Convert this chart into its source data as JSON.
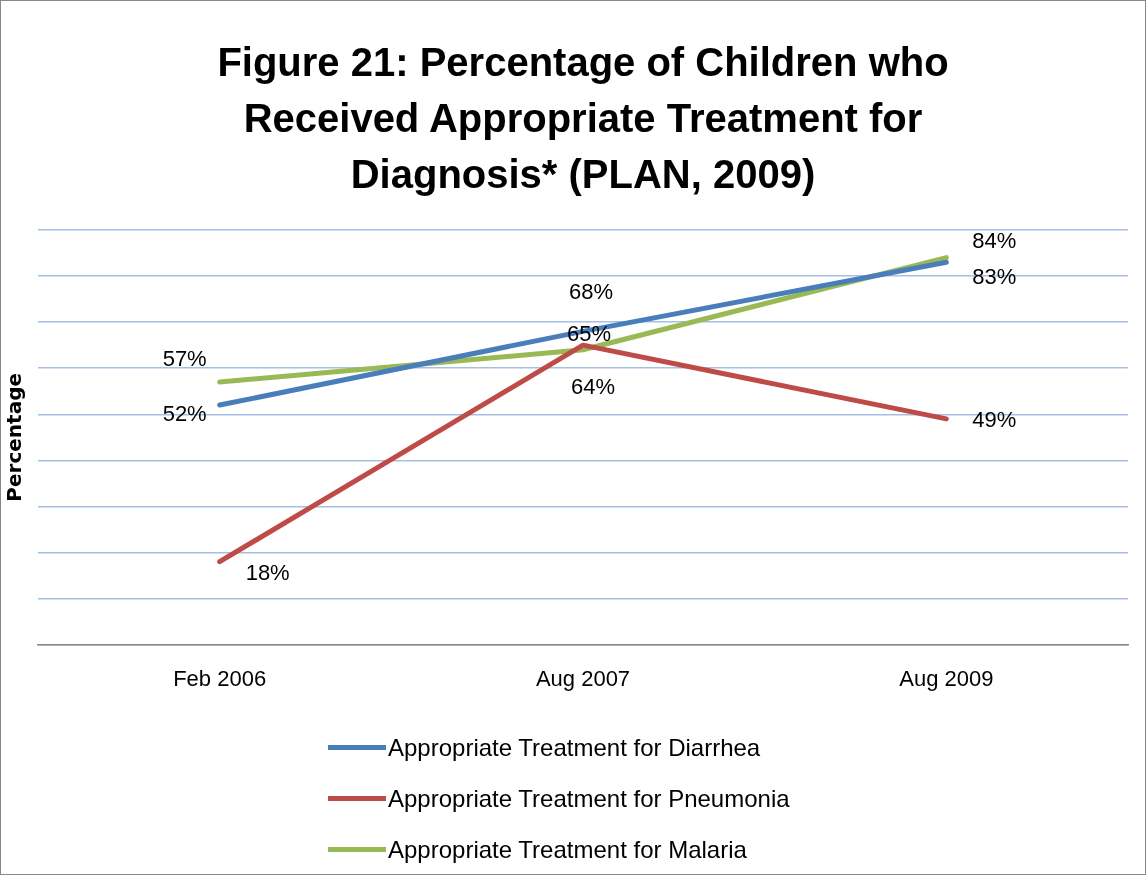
{
  "chart_data": {
    "type": "line",
    "title": "Figure 21: Percentage of Children who Received Appropriate Treatment for Diagnosis* (PLAN, 2009)",
    "ylabel": "Percentage",
    "categories": [
      "Feb 2006",
      "Aug 2007",
      "Aug 2009"
    ],
    "series": [
      {
        "name": "Appropriate Treatment for Diarrhea",
        "color": "#4a7ebb",
        "values": [
          52,
          68,
          83
        ],
        "value_labels": [
          "52%",
          "68%",
          "83%"
        ]
      },
      {
        "name": "Appropriate Treatment for Pneumonia",
        "color": "#be4b48",
        "values": [
          18,
          65,
          49
        ],
        "value_labels": [
          "18%",
          "65%",
          "49%"
        ]
      },
      {
        "name": "Appropriate Treatment for Malaria",
        "color": "#98b954",
        "values": [
          57,
          64,
          84
        ],
        "value_labels": [
          "57%",
          "64%",
          "84%"
        ]
      }
    ],
    "ylim": [
      0,
      90
    ],
    "yticks": [
      {
        "value": 0,
        "label": null
      },
      {
        "value": 10,
        "label": null
      },
      {
        "value": 20,
        "label": null
      },
      {
        "value": 30,
        "label": null
      },
      {
        "value": 40,
        "label": null
      },
      {
        "value": 50,
        "label": null
      },
      {
        "value": 60,
        "label": null
      },
      {
        "value": 70,
        "label": null
      },
      {
        "value": 80,
        "label": null
      },
      {
        "value": 90,
        "label": null
      }
    ],
    "tick_labels": "x",
    "grid": "y",
    "legend": "bottom",
    "marker": "none",
    "line_style": "solid"
  }
}
